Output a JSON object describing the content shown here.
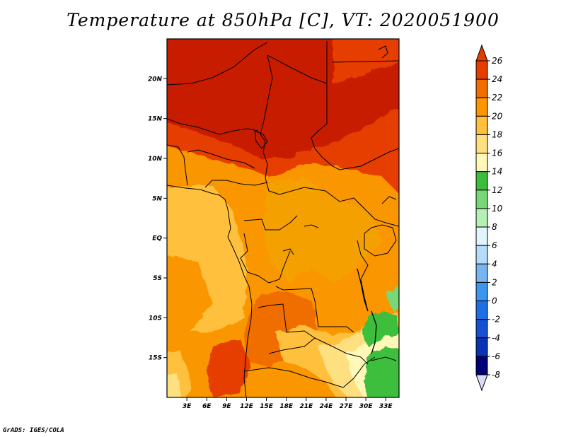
{
  "title": "Temperature at 850hPa [C], VT: 2020051900",
  "credit": "GrADS: IGES/COLA",
  "map": {
    "lon_range": [
      0,
      35
    ],
    "lat_range": [
      -20,
      25
    ],
    "lat_ticks": [
      {
        "label": "20N",
        "value": 20
      },
      {
        "label": "15N",
        "value": 15
      },
      {
        "label": "10N",
        "value": 10
      },
      {
        "label": "5N",
        "value": 5
      },
      {
        "label": "EQ",
        "value": 0
      },
      {
        "label": "5S",
        "value": -5
      },
      {
        "label": "10S",
        "value": -10
      },
      {
        "label": "15S",
        "value": -15
      }
    ],
    "lon_ticks": [
      {
        "label": "3E",
        "value": 3
      },
      {
        "label": "6E",
        "value": 6
      },
      {
        "label": "9E",
        "value": 9
      },
      {
        "label": "12E",
        "value": 12
      },
      {
        "label": "15E",
        "value": 15
      },
      {
        "label": "18E",
        "value": 18
      },
      {
        "label": "21E",
        "value": 21
      },
      {
        "label": "24E",
        "value": 24
      },
      {
        "label": "27E",
        "value": 27
      },
      {
        "label": "30E",
        "value": 30
      },
      {
        "label": "33E",
        "value": 33
      }
    ]
  },
  "colorbar": {
    "levels": [
      "26",
      "24",
      "22",
      "20",
      "18",
      "16",
      "14",
      "12",
      "10",
      "8",
      "6",
      "4",
      "2",
      "0",
      "-2",
      "-4",
      "-6",
      "-8"
    ],
    "colors": [
      "#c81e00",
      "#e63c00",
      "#f06e00",
      "#fa9600",
      "#ffc03c",
      "#ffe080",
      "#fff8b8",
      "#3cbe3c",
      "#78d878",
      "#b4f0b4",
      "#e0f4fc",
      "#b4dcfa",
      "#78b4f0",
      "#3c96f0",
      "#1e6ee6",
      "#1450d2",
      "#0a32b4",
      "#000078",
      "#1c0a50"
    ],
    "top_arrow_color": "#e63c00",
    "bottom_arrow_color": "#d8dcf8"
  }
}
